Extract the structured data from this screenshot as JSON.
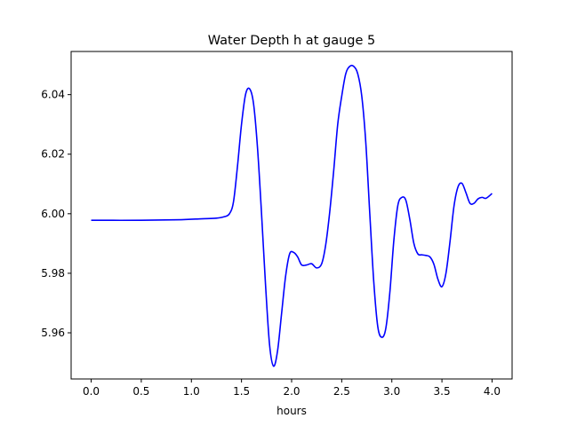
{
  "chart_data": {
    "type": "line",
    "title": "Water Depth h at gauge 5",
    "xlabel": "hours",
    "ylabel": "",
    "xlim": [
      -0.2,
      4.2
    ],
    "ylim": [
      5.9445,
      6.0545
    ],
    "xticks": [
      0.0,
      0.5,
      1.0,
      1.5,
      2.0,
      2.5,
      3.0,
      3.5,
      4.0
    ],
    "xtick_labels": [
      "0.0",
      "0.5",
      "1.0",
      "1.5",
      "2.0",
      "2.5",
      "3.0",
      "3.5",
      "4.0"
    ],
    "yticks": [
      5.96,
      5.98,
      6.0,
      6.02,
      6.04
    ],
    "ytick_labels": [
      "5.96",
      "5.98",
      "6.00",
      "6.02",
      "6.04"
    ],
    "grid": false,
    "legend": "none",
    "series": [
      {
        "color": "#0000ff",
        "x": [
          0.0,
          0.5,
          0.9,
          1.1,
          1.25,
          1.33,
          1.38,
          1.42,
          1.46,
          1.5,
          1.54,
          1.58,
          1.62,
          1.66,
          1.7,
          1.74,
          1.78,
          1.82,
          1.86,
          1.9,
          1.94,
          1.98,
          2.02,
          2.06,
          2.1,
          2.15,
          2.2,
          2.25,
          2.3,
          2.34,
          2.38,
          2.42,
          2.46,
          2.5,
          2.54,
          2.58,
          2.62,
          2.66,
          2.7,
          2.74,
          2.78,
          2.82,
          2.86,
          2.9,
          2.94,
          2.98,
          3.02,
          3.06,
          3.1,
          3.14,
          3.18,
          3.22,
          3.26,
          3.3,
          3.34,
          3.38,
          3.42,
          3.46,
          3.5,
          3.54,
          3.58,
          3.62,
          3.66,
          3.7,
          3.74,
          3.78,
          3.82,
          3.86,
          3.9,
          3.94,
          4.0
        ],
        "y": [
          5.9978,
          5.9978,
          5.998,
          5.9983,
          5.9985,
          5.999,
          6.0,
          6.004,
          6.016,
          6.03,
          6.04,
          6.042,
          6.037,
          6.022,
          6.0,
          5.976,
          5.956,
          5.9488,
          5.954,
          5.9665,
          5.979,
          5.9865,
          5.987,
          5.9855,
          5.9828,
          5.9828,
          5.9832,
          5.9818,
          5.9832,
          5.9895,
          6.0005,
          6.0145,
          6.03,
          6.0395,
          6.047,
          6.0495,
          6.0495,
          6.047,
          6.0395,
          6.024,
          6.0,
          5.977,
          5.962,
          5.9585,
          5.9615,
          5.9735,
          5.991,
          6.0028,
          6.0055,
          6.0045,
          5.998,
          5.99,
          5.9865,
          5.9862,
          5.986,
          5.9855,
          5.983,
          5.978,
          5.9755,
          5.98,
          5.9905,
          6.0025,
          6.009,
          6.0102,
          6.007,
          6.0035,
          6.0035,
          6.005,
          6.0055,
          6.0052,
          6.0068
        ]
      }
    ]
  }
}
